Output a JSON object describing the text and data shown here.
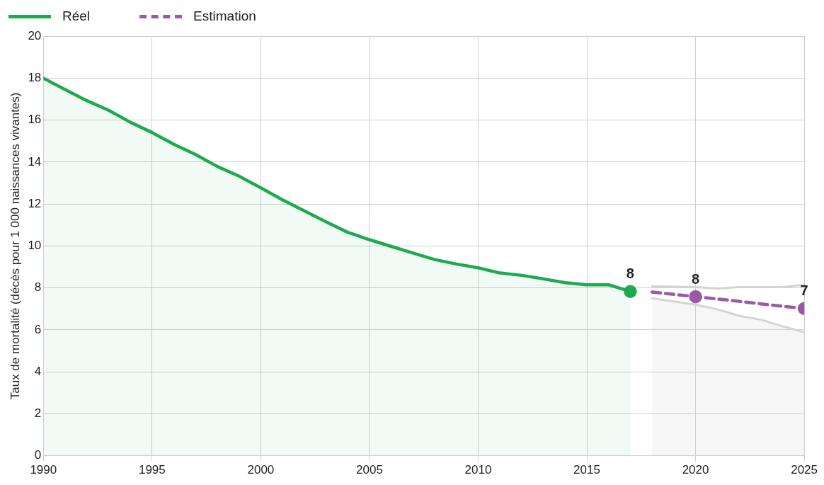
{
  "chart_data": {
    "type": "line",
    "ylabel": "Taux de mortalité (décès pour 1 000 naissances vivantes)",
    "xlim": [
      1990,
      2025
    ],
    "xticks": [
      1990,
      1995,
      2000,
      2005,
      2010,
      2015,
      2020,
      2025
    ],
    "ylim": [
      0,
      20
    ],
    "yticks": [
      0,
      2,
      4,
      6,
      8,
      10,
      12,
      14,
      16,
      18,
      20
    ],
    "grid": true,
    "legend": "top left",
    "series": [
      {
        "name": "Réel",
        "type": "area",
        "color": "#1eaa4e",
        "line_style": "solid",
        "x": [
          1990,
          1991,
          1992,
          1993,
          1994,
          1995,
          1996,
          1997,
          1998,
          1999,
          2000,
          2001,
          2002,
          2003,
          2004,
          2005,
          2006,
          2007,
          2008,
          2009,
          2010,
          2011,
          2012,
          2013,
          2014,
          2015,
          2016,
          2017
        ],
        "values": [
          18.0,
          17.46,
          16.93,
          16.47,
          15.9,
          15.41,
          14.85,
          14.36,
          13.79,
          13.33,
          12.77,
          12.2,
          11.68,
          11.15,
          10.65,
          10.3,
          9.98,
          9.66,
          9.35,
          9.14,
          8.96,
          8.71,
          8.6,
          8.43,
          8.25,
          8.15,
          8.15,
          7.83
        ],
        "value_labels": [
          null,
          null,
          null,
          null,
          null,
          null,
          null,
          null,
          null,
          null,
          null,
          null,
          null,
          null,
          null,
          null,
          null,
          null,
          null,
          null,
          null,
          null,
          null,
          null,
          null,
          null,
          null,
          "8"
        ]
      },
      {
        "type": "line",
        "color": "#d4d4d4",
        "line_style": "solid",
        "x": [
          2018,
          2020,
          2021,
          2022,
          2023,
          2024,
          2025
        ],
        "values": [
          8.08,
          8.04,
          7.97,
          8.04,
          8.04,
          8.04,
          8.15
        ]
      },
      {
        "type": "area",
        "color": "#d4d4d4",
        "line_style": "solid",
        "x": [
          2018,
          2020,
          2021,
          2022,
          2023,
          2024,
          2025
        ],
        "values": [
          7.51,
          7.2,
          6.98,
          6.67,
          6.49,
          6.17,
          5.89
        ]
      },
      {
        "name": "Estimation",
        "type": "line",
        "color": "#9b59a8",
        "line_style": "dashed",
        "x": [
          2018,
          2020,
          2021,
          2022,
          2023,
          2024,
          2025
        ],
        "values": [
          7.8,
          7.58,
          7.47,
          7.36,
          7.24,
          7.13,
          7.02
        ],
        "value_labels": [
          null,
          "8",
          null,
          null,
          null,
          null,
          "7"
        ]
      }
    ]
  }
}
